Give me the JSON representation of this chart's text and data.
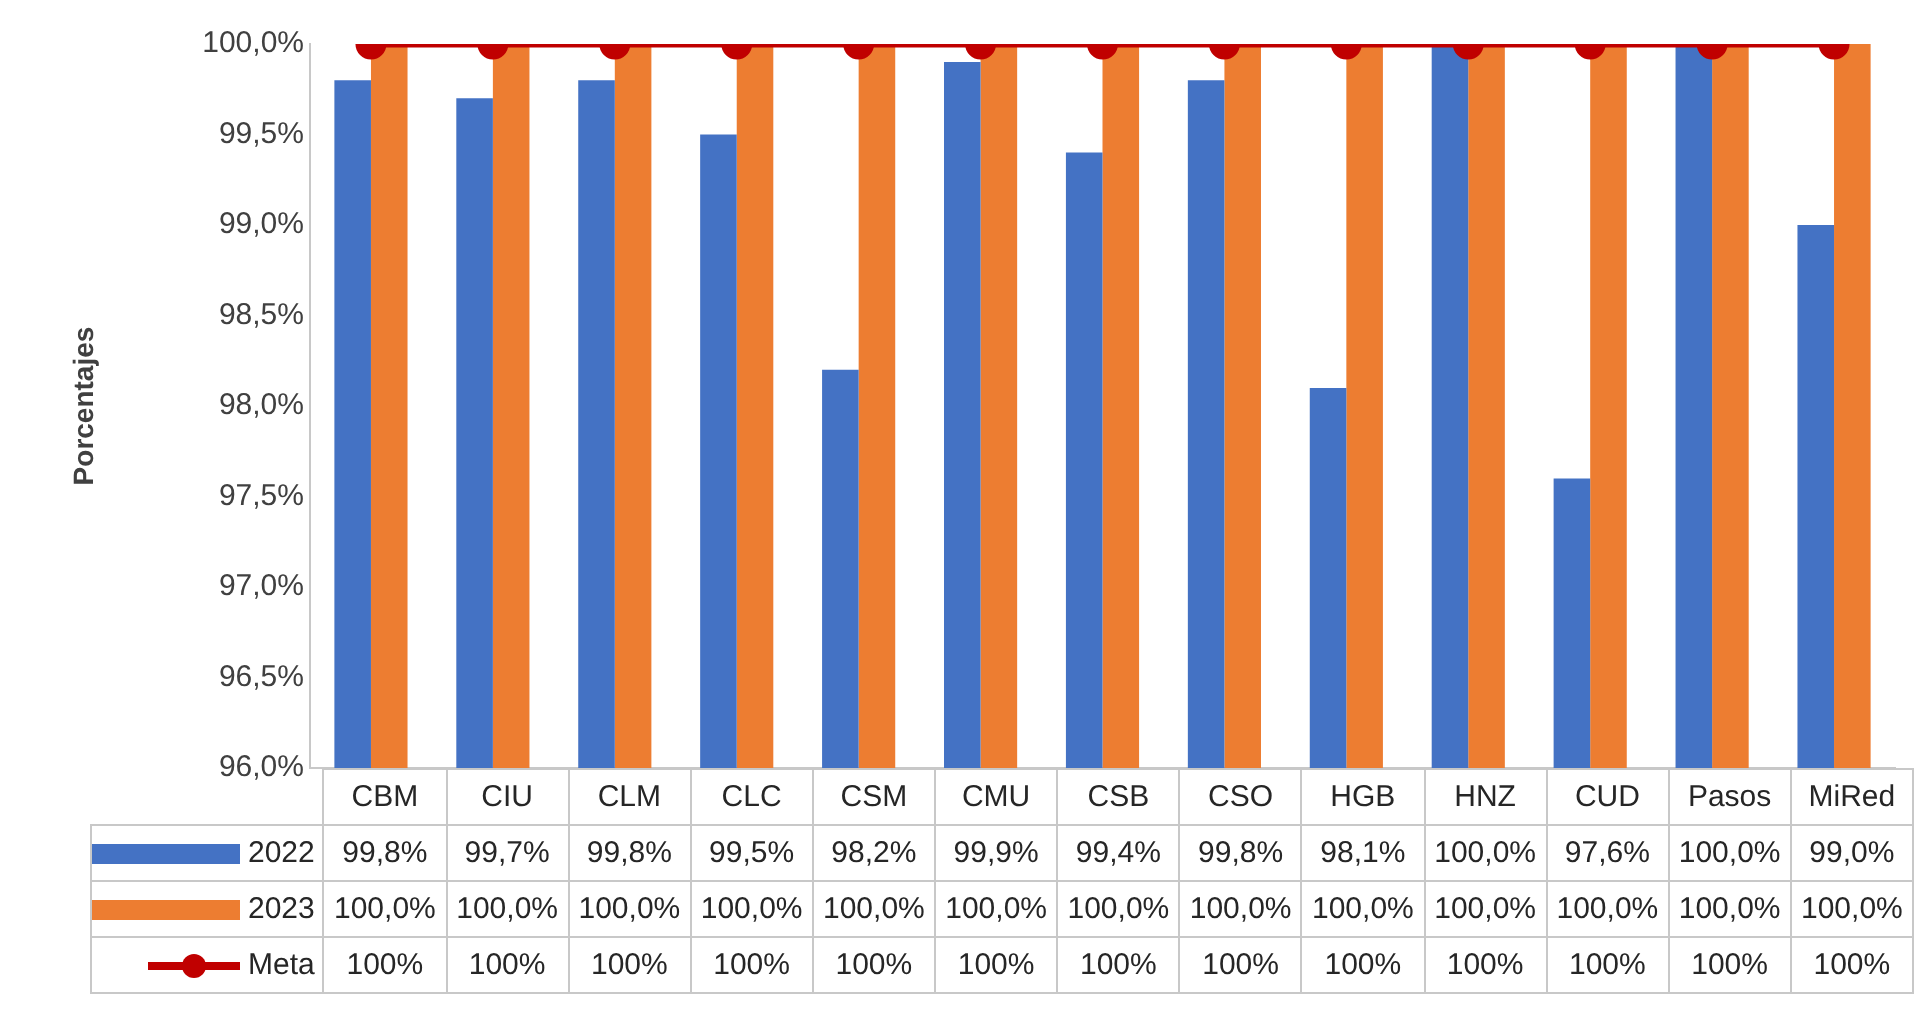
{
  "chart_data": {
    "type": "bar",
    "ylabel": "Porcentajes",
    "categories": [
      "CBM",
      "CIU",
      "CLM",
      "CLC",
      "CSM",
      "CMU",
      "CSB",
      "CSO",
      "HGB",
      "HNZ",
      "CUD",
      "Pasos",
      "MiRed"
    ],
    "series": [
      {
        "name": "2022",
        "color": "#4472c4",
        "values": [
          99.8,
          99.7,
          99.8,
          99.5,
          98.2,
          99.9,
          99.4,
          99.8,
          98.1,
          100.0,
          97.6,
          100.0,
          99.0
        ],
        "value_labels": [
          "99,8%",
          "99,7%",
          "99,8%",
          "99,5%",
          "98,2%",
          "99,9%",
          "99,4%",
          "99,8%",
          "98,1%",
          "100,0%",
          "97,6%",
          "100,0%",
          "99,0%"
        ]
      },
      {
        "name": "2023",
        "color": "#ed7d31",
        "values": [
          100.0,
          100.0,
          100.0,
          100.0,
          100.0,
          100.0,
          100.0,
          100.0,
          100.0,
          100.0,
          100.0,
          100.0,
          100.0
        ],
        "value_labels": [
          "100,0%",
          "100,0%",
          "100,0%",
          "100,0%",
          "100,0%",
          "100,0%",
          "100,0%",
          "100,0%",
          "100,0%",
          "100,0%",
          "100,0%",
          "100,0%",
          "100,0%"
        ]
      },
      {
        "name": "Meta",
        "type": "line",
        "color": "#c00000",
        "values": [
          100,
          100,
          100,
          100,
          100,
          100,
          100,
          100,
          100,
          100,
          100,
          100,
          100
        ],
        "value_labels": [
          "100%",
          "100%",
          "100%",
          "100%",
          "100%",
          "100%",
          "100%",
          "100%",
          "100%",
          "100%",
          "100%",
          "100%",
          "100%"
        ]
      }
    ],
    "ylim": [
      96,
      100
    ],
    "yticks": [
      {
        "value": 96,
        "label": "96,0%"
      },
      {
        "value": 96.5,
        "label": "96,5%"
      },
      {
        "value": 97,
        "label": "97,0%"
      },
      {
        "value": 97.5,
        "label": "97,5%"
      },
      {
        "value": 98,
        "label": "98,0%"
      },
      {
        "value": 98.5,
        "label": "98,5%"
      },
      {
        "value": 99,
        "label": "99,0%"
      },
      {
        "value": 99.5,
        "label": "99,5%"
      },
      {
        "value": 100,
        "label": "100,0%"
      }
    ],
    "grid": false,
    "legend": "bottom",
    "marker": "circle"
  }
}
